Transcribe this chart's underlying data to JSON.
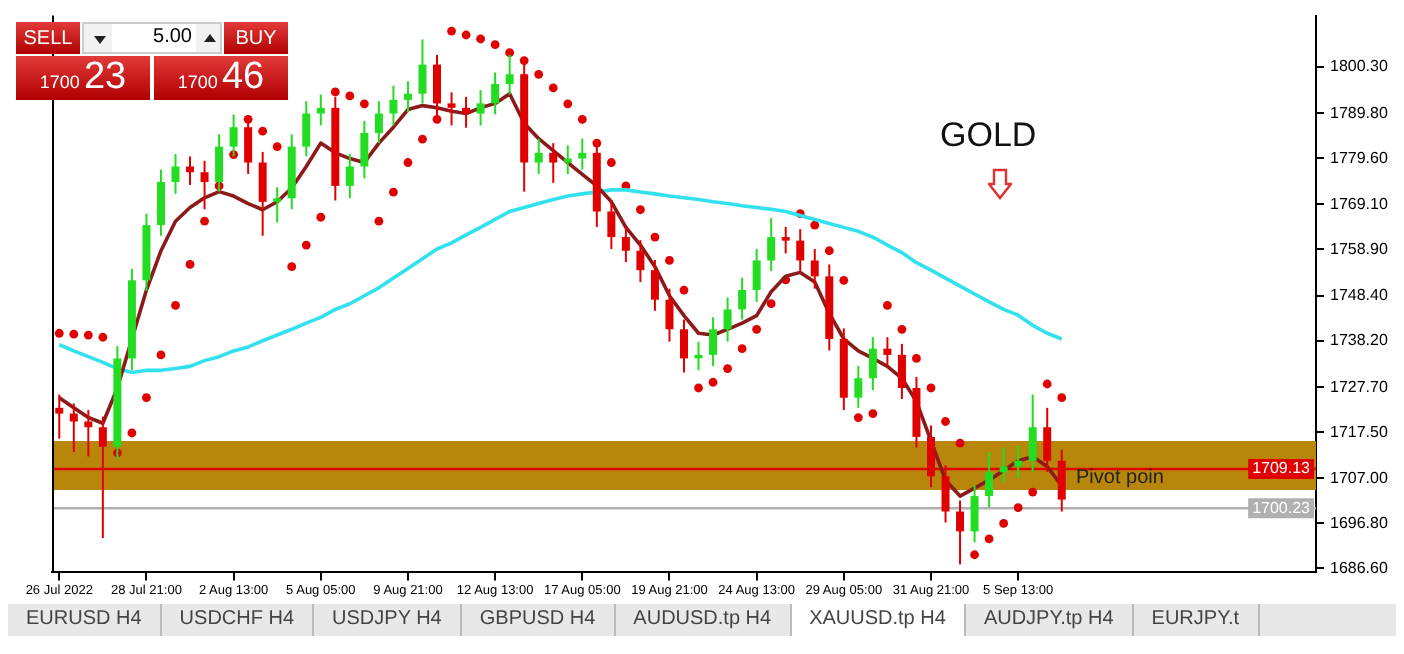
{
  "chart_data": {
    "type": "candlestick",
    "categories": [
      "26 Jul 2022",
      null,
      null,
      null,
      null,
      null,
      "28 Jul 21:00",
      null,
      null,
      null,
      null,
      null,
      "2 Aug 13:00",
      null,
      null,
      null,
      null,
      null,
      "5 Aug 05:00",
      null,
      null,
      null,
      null,
      null,
      "9 Aug 21:00",
      null,
      null,
      null,
      null,
      null,
      "12 Aug 13:00",
      null,
      null,
      null,
      null,
      null,
      "17 Aug 05:00",
      null,
      null,
      null,
      null,
      null,
      "19 Aug 21:00",
      null,
      null,
      null,
      null,
      null,
      "24 Aug 13:00",
      null,
      null,
      null,
      null,
      null,
      "29 Aug 05:00",
      null,
      null,
      null,
      null,
      null,
      "31 Aug 21:00",
      null,
      null,
      null,
      null,
      null,
      "5 Sep 13:00",
      null,
      null,
      null,
      null,
      null,
      null,
      null,
      null,
      null,
      null,
      null,
      null,
      null,
      null,
      null,
      null,
      null,
      null,
      null,
      null
    ],
    "ohlc": [
      [
        1723.0,
        1726.0,
        1716.0,
        1721.7
      ],
      [
        1721.7,
        1724.0,
        1713.0,
        1719.9
      ],
      [
        1719.9,
        1722.5,
        1712.0,
        1718.6
      ],
      [
        1718.6,
        1721.0,
        1693.5,
        1714.2
      ],
      [
        1714.2,
        1737.0,
        1711.5,
        1734.2
      ],
      [
        1734.2,
        1754.5,
        1731.5,
        1751.9
      ],
      [
        1751.9,
        1767.0,
        1749.5,
        1764.4
      ],
      [
        1764.4,
        1777.0,
        1762.0,
        1774.2
      ],
      [
        1774.2,
        1780.5,
        1771.5,
        1777.7
      ],
      [
        1777.7,
        1780.0,
        1773.5,
        1776.4
      ],
      [
        1776.4,
        1779.0,
        1768.0,
        1774.2
      ],
      [
        1774.2,
        1785.0,
        1772.0,
        1782.2
      ],
      [
        1782.2,
        1789.5,
        1780.0,
        1786.6
      ],
      [
        1786.6,
        1789.0,
        1776.0,
        1778.6
      ],
      [
        1778.6,
        1781.0,
        1762.0,
        1769.7
      ],
      [
        1769.7,
        1773.0,
        1765.0,
        1770.5
      ],
      [
        1770.5,
        1785.0,
        1768.0,
        1782.2
      ],
      [
        1782.2,
        1792.5,
        1780.0,
        1789.7
      ],
      [
        1789.7,
        1794.0,
        1787.0,
        1791.0
      ],
      [
        1791.0,
        1793.5,
        1770.0,
        1773.3
      ],
      [
        1773.3,
        1780.5,
        1770.5,
        1777.7
      ],
      [
        1777.7,
        1788.0,
        1775.0,
        1785.3
      ],
      [
        1785.3,
        1792.5,
        1783.0,
        1789.7
      ],
      [
        1789.7,
        1796.0,
        1787.0,
        1792.8
      ],
      [
        1792.8,
        1797.0,
        1790.0,
        1794.2
      ],
      [
        1794.2,
        1806.5,
        1792.0,
        1800.8
      ],
      [
        1800.8,
        1803.0,
        1789.0,
        1792.0
      ],
      [
        1792.0,
        1794.5,
        1787.0,
        1791.0
      ],
      [
        1791.0,
        1793.5,
        1786.5,
        1789.7
      ],
      [
        1789.7,
        1795.0,
        1787.0,
        1792.0
      ],
      [
        1792.0,
        1799.0,
        1789.5,
        1796.4
      ],
      [
        1796.4,
        1803.0,
        1794.0,
        1798.6
      ],
      [
        1798.6,
        1801.0,
        1772.0,
        1778.6
      ],
      [
        1778.6,
        1784.0,
        1776.0,
        1780.8
      ],
      [
        1780.8,
        1783.0,
        1774.0,
        1778.6
      ],
      [
        1778.6,
        1782.5,
        1776.0,
        1779.5
      ],
      [
        1779.5,
        1784.0,
        1777.0,
        1780.8
      ],
      [
        1780.8,
        1783.0,
        1764.0,
        1767.5
      ],
      [
        1767.5,
        1770.0,
        1759.0,
        1761.7
      ],
      [
        1761.7,
        1764.0,
        1756.0,
        1758.6
      ],
      [
        1758.6,
        1761.0,
        1751.5,
        1754.2
      ],
      [
        1754.2,
        1756.5,
        1745.0,
        1747.5
      ],
      [
        1747.5,
        1750.0,
        1738.0,
        1740.8
      ],
      [
        1740.8,
        1743.0,
        1731.0,
        1734.2
      ],
      [
        1734.2,
        1738.0,
        1731.5,
        1735.0
      ],
      [
        1735.0,
        1743.5,
        1732.5,
        1740.8
      ],
      [
        1740.8,
        1748.0,
        1738.0,
        1745.3
      ],
      [
        1745.3,
        1752.5,
        1743.0,
        1749.7
      ],
      [
        1749.7,
        1759.0,
        1747.0,
        1756.4
      ],
      [
        1756.4,
        1766.0,
        1754.0,
        1761.7
      ],
      [
        1761.7,
        1764.0,
        1758.0,
        1760.9
      ],
      [
        1760.9,
        1763.5,
        1754.0,
        1756.4
      ],
      [
        1756.4,
        1759.0,
        1750.0,
        1752.8
      ],
      [
        1752.8,
        1755.5,
        1736.0,
        1738.6
      ],
      [
        1738.6,
        1741.0,
        1722.5,
        1725.3
      ],
      [
        1725.3,
        1732.5,
        1723.0,
        1729.7
      ],
      [
        1729.7,
        1739.0,
        1727.0,
        1736.4
      ],
      [
        1736.4,
        1739.0,
        1732.5,
        1735.0
      ],
      [
        1735.0,
        1737.5,
        1725.0,
        1727.5
      ],
      [
        1727.5,
        1730.0,
        1714.0,
        1716.4
      ],
      [
        1716.4,
        1719.0,
        1705.0,
        1707.5
      ],
      [
        1707.5,
        1710.0,
        1697.0,
        1699.5
      ],
      [
        1699.5,
        1702.0,
        1687.5,
        1695.0
      ],
      [
        1695.0,
        1705.5,
        1692.5,
        1703.0
      ],
      [
        1703.0,
        1713.0,
        1700.5,
        1708.4
      ],
      [
        1708.4,
        1714.0,
        1706.0,
        1709.7
      ],
      [
        1709.7,
        1714.5,
        1707.0,
        1711.0
      ],
      [
        1711.0,
        1726.0,
        1708.5,
        1718.6
      ],
      [
        1718.6,
        1723.0,
        1708.5,
        1711.0
      ],
      [
        1711.0,
        1713.5,
        1699.5,
        1702.2
      ],
      null,
      null,
      null,
      null,
      null,
      null,
      null,
      null,
      null,
      null,
      null,
      null,
      null,
      null,
      null,
      null,
      null
    ],
    "colors": [
      "#e00000",
      "#e00000",
      "#e00000",
      "#e00000",
      "#22dd22",
      "#22dd22",
      "#22dd22",
      "#22dd22",
      "#22dd22",
      "#e00000",
      "#e00000",
      "#22dd22",
      "#22dd22",
      "#e00000",
      "#e00000",
      "#22dd22",
      "#22dd22",
      "#22dd22",
      "#22dd22",
      "#e00000",
      "#22dd22",
      "#22dd22",
      "#22dd22",
      "#22dd22",
      "#22dd22",
      "#22dd22",
      "#e00000",
      "#e00000",
      "#e00000",
      "#22dd22",
      "#22dd22",
      "#22dd22",
      "#e00000",
      "#22dd22",
      "#e00000",
      "#22dd22",
      "#22dd22",
      "#e00000",
      "#e00000",
      "#e00000",
      "#e00000",
      "#e00000",
      "#e00000",
      "#e00000",
      "#22dd22",
      "#22dd22",
      "#22dd22",
      "#22dd22",
      "#22dd22",
      "#22dd22",
      "#e00000",
      "#e00000",
      "#e00000",
      "#e00000",
      "#e00000",
      "#22dd22",
      "#22dd22",
      "#e00000",
      "#e00000",
      "#e00000",
      "#e00000",
      "#e00000",
      "#e00000",
      "#22dd22",
      "#22dd22",
      "#22dd22",
      "#22dd22",
      "#22dd22",
      "#e00000",
      "#e00000",
      null,
      null,
      null,
      null,
      null,
      null,
      null,
      null,
      null,
      null,
      null,
      null,
      null,
      null,
      null,
      null,
      null
    ],
    "series": [
      {
        "type": "line",
        "color": "#8b1a1a",
        "values": [
          1725.3,
          1723.0,
          1720.8,
          1719.5,
          1727.5,
          null,
          1749.7,
          1758.6,
          1765.3,
          1768.4,
          1770.6,
          1772.0,
          1771.0,
          1769.3,
          1767.9,
          1769.7,
          1772.8,
          1777.7,
          1783.0,
          1780.8,
          1779.5,
          1778.6,
          1783.0,
          1786.6,
          1790.6,
          1791.5,
          1791.0,
          1790.2,
          1789.7,
          1791.0,
          1792.0,
          1794.2,
          1787.5,
          1784.0,
          1781.3,
          1778.6,
          1775.9,
          1773.3,
          1769.7,
          1763.9,
          1759.9,
          1755.0,
          1748.4,
          1743.9,
          1739.9,
          1739.5,
          1740.8,
          1742.2,
          1743.9,
          1749.3,
          1752.8,
          1753.7,
          1751.5,
          1744.4,
          1738.6,
          1735.9,
          1734.2,
          1732.4,
          1729.7,
          1724.4,
          1715.5,
          1706.6,
          1703.0,
          1704.8,
          1706.6,
          1708.8,
          1711.0,
          1711.9,
          1709.7,
          1705.3,
          null,
          null,
          null,
          null,
          null,
          null,
          null,
          null,
          null,
          null,
          null,
          null,
          null,
          null,
          null,
          null,
          null
        ]
      },
      {
        "type": "line",
        "color": "#33e0ee",
        "values": [
          1737.3,
          1735.9,
          1734.6,
          1733.3,
          1731.9,
          1731.0,
          1731.5,
          1731.5,
          1731.9,
          1732.4,
          1733.7,
          1734.6,
          1735.9,
          1736.8,
          1738.2,
          1739.5,
          1740.8,
          1742.2,
          1743.5,
          1745.3,
          1746.6,
          1748.4,
          1750.2,
          1752.4,
          1754.6,
          1756.8,
          1759.0,
          1760.4,
          1762.2,
          1763.9,
          1765.7,
          1767.5,
          1768.4,
          1769.3,
          1770.2,
          1771.0,
          1771.5,
          1771.9,
          1772.4,
          1772.4,
          1771.9,
          1771.5,
          1771.0,
          1770.6,
          1770.2,
          1769.7,
          1769.3,
          1768.8,
          1768.4,
          1768.0,
          1767.5,
          1766.6,
          1765.7,
          1764.8,
          1763.9,
          1763.0,
          1761.7,
          1759.9,
          1758.2,
          1755.9,
          1754.2,
          1752.4,
          1750.6,
          1748.8,
          1747.0,
          1745.3,
          1744.0,
          1741.7,
          1739.9,
          1738.6,
          null,
          null,
          null,
          null,
          null,
          null,
          null,
          null,
          null,
          null,
          null,
          null,
          null,
          null,
          null,
          null,
          null
        ]
      },
      {
        "type": "scatter",
        "color": "#e00000",
        "marker": "circle",
        "values": [
          1739.9,
          1739.7,
          1739.5,
          1739.0,
          1712.8,
          1717.3,
          1725.3,
          1735.0,
          1746.2,
          1755.5,
          1765.3,
          1773.3,
          1780.4,
          1788.4,
          1785.7,
          1782.2,
          1755.0,
          1759.9,
          1766.2,
          1794.6,
          1793.7,
          1791.9,
          1765.3,
          1771.9,
          1778.6,
          1783.9,
          1788.4,
          1808.4,
          1807.5,
          1806.6,
          1805.3,
          1803.5,
          1801.7,
          1798.6,
          1795.5,
          1791.9,
          1788.4,
          1783.0,
          1778.6,
          1773.3,
          1767.9,
          1761.7,
          1756.4,
          1749.7,
          1727.5,
          1728.8,
          1731.9,
          1736.4,
          1740.8,
          1746.6,
          1752.0,
          1767.0,
          1764.4,
          1758.6,
          1751.9,
          1720.8,
          1721.7,
          1746.2,
          1740.8,
          1734.2,
          1727.5,
          1719.9,
          1715.0,
          1689.7,
          1693.3,
          1696.8,
          1700.4,
          1703.9,
          1728.4,
          1725.3,
          null,
          null,
          null,
          null,
          null,
          null,
          null,
          null,
          null,
          null,
          null,
          null,
          null,
          null,
          null,
          null,
          null
        ]
      }
    ],
    "ylim": [
      1685.7,
      1811.9
    ],
    "yticks": [
      {
        "value": 1686.6,
        "label": "1686.60"
      },
      {
        "value": 1696.8,
        "label": "1696.80"
      },
      {
        "value": 1707.0,
        "label": "1707.00"
      },
      {
        "value": 1717.5,
        "label": "1717.50"
      },
      {
        "value": 1727.7,
        "label": "1727.70"
      },
      {
        "value": 1738.2,
        "label": "1738.20"
      },
      {
        "value": 1748.4,
        "label": "1748.40"
      },
      {
        "value": 1758.9,
        "label": "1758.90"
      },
      {
        "value": 1769.1,
        "label": "1769.10"
      },
      {
        "value": 1779.6,
        "label": "1779.60"
      },
      {
        "value": 1789.8,
        "label": "1789.80"
      },
      {
        "value": 1800.3,
        "label": "1800.30"
      }
    ],
    "bands": [
      {
        "axis": "y",
        "from": 1704.4,
        "to": 1715.5,
        "label": "Pivot poin",
        "color": "#b8860b"
      }
    ],
    "ref_lines": [
      {
        "axis": "y",
        "value": 1709.13,
        "label": "1709.13",
        "color": "#e00000"
      },
      {
        "axis": "y",
        "value": 1700.23,
        "label": "1700.23",
        "color": "#b0b0b0"
      }
    ],
    "annotations": [
      "GOLD",
      "SELL",
      "5.00",
      "BUY",
      "1700",
      "23",
      "1700",
      "46",
      "EURUSD H4",
      "USDCHF H4",
      "USDJPY H4",
      "GBPUSD H4",
      "AUDUSD.tp H4",
      "XAUUSD.tp H4",
      "AUDJPY.tp H4",
      "EURJPY.t"
    ]
  }
}
